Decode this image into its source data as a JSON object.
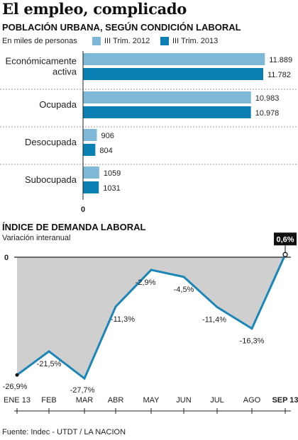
{
  "title": "El empleo, complicado",
  "chart_data": [
    {
      "type": "bar",
      "title": "POBLACIÓN URBANA, SEGÚN CONDICIÓN LABORAL",
      "units_label": "En miles de personas",
      "categories": [
        "Económicamente activa",
        "Ocupada",
        "Desocupada",
        "Subocupada"
      ],
      "category_lines": [
        [
          "Económicamente",
          "activa"
        ],
        [
          "Ocupada"
        ],
        [
          "Desocupada"
        ],
        [
          "Subocupada"
        ]
      ],
      "series": [
        {
          "name": "III Trim. 2012",
          "color": "#7fb8d6",
          "values": [
            11889,
            10983,
            906,
            1059
          ],
          "labels": [
            "11.889",
            "10.983",
            "906",
            "1059"
          ]
        },
        {
          "name": "III Trim. 2013",
          "color": "#0a7fb3",
          "values": [
            11782,
            10978,
            804,
            1031
          ],
          "labels": [
            "11.782",
            "10.978",
            "804",
            "1031"
          ]
        }
      ],
      "zero_label": "0",
      "orientation": "horizontal",
      "xlim": [
        0,
        12200
      ]
    },
    {
      "type": "line",
      "title": "ÍNDICE DE DEMANDA LABORAL",
      "subtitle": "Variación interanual",
      "x": [
        "ENE 13",
        "FEB",
        "MAR",
        "ABR",
        "MAY",
        "JUN",
        "JUL",
        "AGO",
        "SEP 13"
      ],
      "values": [
        -26.9,
        -21.5,
        -27.7,
        -11.3,
        -2.9,
        -4.5,
        -11.4,
        -16.3,
        0.6
      ],
      "labels": [
        "-26,9%",
        "-21,5%",
        "-27,7%",
        "-11,3%",
        "-2,9%",
        "-4,5%",
        "-11,4%",
        "-16,3%",
        "0,6%"
      ],
      "zero_label": "0",
      "ylim": [
        -30,
        2
      ],
      "line_color": "#1a86b8",
      "fill_color": "#cfcfcf",
      "highlight": "SEP 13"
    }
  ],
  "source": "Fuente: Indec - UTDT / LA NACION"
}
